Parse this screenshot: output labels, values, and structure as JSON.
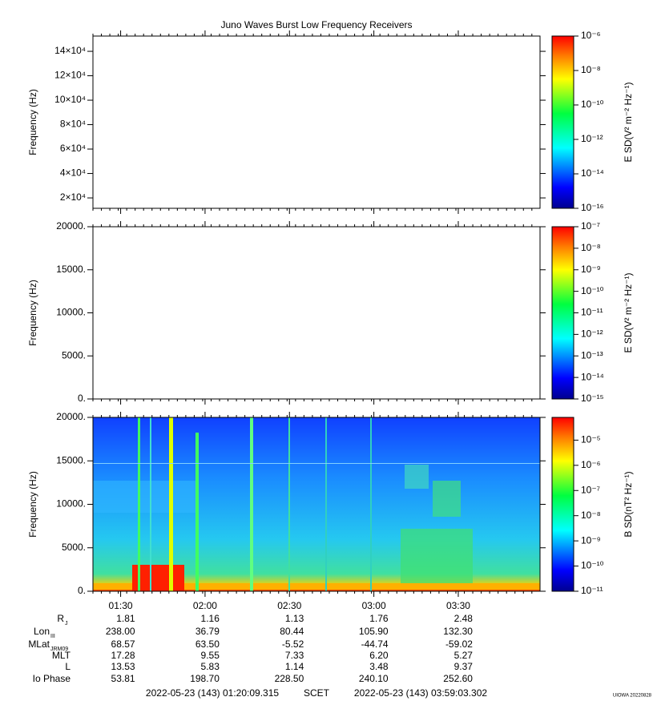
{
  "chart_data": {
    "type": "spectrogram",
    "title": "Juno Waves Burst Low Frequency Receivers",
    "xlim": [
      "2022-05-23T01:20:09.315",
      "2022-05-23T03:59:03.302"
    ],
    "xticks": [
      "01:30",
      "02:00",
      "02:30",
      "03:00",
      "03:30"
    ],
    "panels": [
      {
        "ylabel": "Frequency (Hz)",
        "ylim": [
          11500,
          152500
        ],
        "yticks": [
          {
            "value": 20000,
            "label": "2×10⁴"
          },
          {
            "value": 40000,
            "label": "4×10⁴"
          },
          {
            "value": 60000,
            "label": "6×10⁴"
          },
          {
            "value": 80000,
            "label": "8×10⁴"
          },
          {
            "value": 100000,
            "label": "10×10⁴"
          },
          {
            "value": 120000,
            "label": "12×10⁴"
          },
          {
            "value": 140000,
            "label": "14×10⁴"
          }
        ],
        "clabel": "E SD(V² m⁻² Hz⁻¹)",
        "clim": [
          1e-16,
          1e-06
        ],
        "clog": true,
        "cticks": [
          {
            "value": 1e-16,
            "label": "10⁻¹⁶"
          },
          {
            "value": 1e-14,
            "label": "10⁻¹⁴"
          },
          {
            "value": 1e-12,
            "label": "10⁻¹²"
          },
          {
            "value": 1e-10,
            "label": "10⁻¹⁰"
          },
          {
            "value": 1e-08,
            "label": "10⁻⁸"
          },
          {
            "value": 1e-06,
            "label": "10⁻⁶"
          }
        ]
      },
      {
        "ylabel": "Frequency (Hz)",
        "ylim": [
          0,
          20000
        ],
        "yticks": [
          {
            "value": 0,
            "label": "0."
          },
          {
            "value": 5000,
            "label": "5000."
          },
          {
            "value": 10000,
            "label": "10000."
          },
          {
            "value": 15000,
            "label": "15000."
          },
          {
            "value": 20000,
            "label": "20000."
          }
        ],
        "clabel": "E SD(V² m⁻² Hz⁻¹)",
        "clim": [
          1e-15,
          1e-07
        ],
        "clog": true,
        "cticks": [
          {
            "value": 1e-15,
            "label": "10⁻¹⁵"
          },
          {
            "value": 1e-14,
            "label": "10⁻¹⁴"
          },
          {
            "value": 1e-13,
            "label": "10⁻¹³"
          },
          {
            "value": 1e-12,
            "label": "10⁻¹²"
          },
          {
            "value": 1e-11,
            "label": "10⁻¹¹"
          },
          {
            "value": 1e-10,
            "label": "10⁻¹⁰"
          },
          {
            "value": 1e-09,
            "label": "10⁻⁹"
          },
          {
            "value": 1e-08,
            "label": "10⁻⁸"
          },
          {
            "value": 1e-07,
            "label": "10⁻⁷"
          }
        ]
      },
      {
        "ylabel": "Frequency (Hz)",
        "ylim": [
          0,
          20000
        ],
        "yticks": [
          {
            "value": 0,
            "label": "0."
          },
          {
            "value": 5000,
            "label": "5000."
          },
          {
            "value": 10000,
            "label": "10000."
          },
          {
            "value": 15000,
            "label": "15000."
          },
          {
            "value": 20000,
            "label": "20000."
          }
        ],
        "clabel": "B SD(nT² Hz⁻¹)",
        "clim": [
          1e-11,
          8e-05
        ],
        "clog": true,
        "cticks": [
          {
            "value": 1e-11,
            "label": "10⁻¹¹"
          },
          {
            "value": 1e-10,
            "label": "10⁻¹⁰"
          },
          {
            "value": 1e-09,
            "label": "10⁻⁹"
          },
          {
            "value": 1e-08,
            "label": "10⁻⁸"
          },
          {
            "value": 1e-07,
            "label": "10⁻⁷"
          },
          {
            "value": 1e-06,
            "label": "10⁻⁶"
          },
          {
            "value": 1e-05,
            "label": "10⁻⁵"
          }
        ]
      }
    ],
    "ephemeris": [
      {
        "label": "R",
        "sub": "J",
        "values": [
          "1.81",
          "1.16",
          "1.13",
          "1.76",
          "2.48"
        ]
      },
      {
        "label": "Lon",
        "sub": "III",
        "values": [
          "238.00",
          "36.79",
          "80.44",
          "105.90",
          "132.30"
        ]
      },
      {
        "label": "MLat",
        "sub": "JRM09",
        "values": [
          "68.57",
          "63.50",
          "-5.52",
          "-44.74",
          "-59.02"
        ]
      },
      {
        "label": "MLT",
        "values": [
          "17.28",
          "9.55",
          "7.33",
          "6.20",
          "5.27"
        ]
      },
      {
        "label": "L",
        "values": [
          "13.53",
          "5.83",
          "1.14",
          "3.48",
          "9.37"
        ]
      },
      {
        "label": "Io Phase",
        "values": [
          "53.81",
          "198.70",
          "228.50",
          "240.10",
          "252.60"
        ]
      }
    ],
    "footer": {
      "start": "2022-05-23 (143) 01:20:09.315",
      "frame": "SCET",
      "end": "2022-05-23 (143) 03:59:03.302",
      "stamp": "UIOWA 20220828"
    }
  }
}
